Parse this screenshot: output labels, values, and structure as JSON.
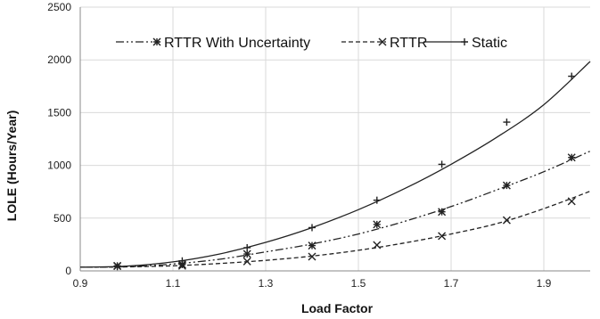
{
  "chart_data": {
    "type": "line",
    "title": "",
    "xlabel": "Load Factor",
    "ylabel": "LOLE (Hours/Year)",
    "xlim": [
      0.9,
      2.0
    ],
    "ylim": [
      0,
      2500
    ],
    "x_ticks": [
      "0.9",
      "1.1",
      "1.3",
      "1.5",
      "1.7",
      "1.9"
    ],
    "y_ticks": [
      "0",
      "500",
      "1000",
      "1500",
      "2000",
      "2500"
    ],
    "grid": true,
    "legend_position": "top",
    "series": [
      {
        "name": "RTTR With Uncertainty",
        "marker": "asterisk",
        "line_style": "dash-dot-dot",
        "color": "#222222",
        "points": [
          [
            0.98,
            48
          ],
          [
            1.12,
            60
          ],
          [
            1.26,
            160
          ],
          [
            1.4,
            240
          ],
          [
            1.54,
            440
          ],
          [
            1.68,
            560
          ],
          [
            1.82,
            810
          ],
          [
            1.96,
            1075
          ]
        ],
        "trend": [
          [
            0.9,
            35
          ],
          [
            1.0,
            40
          ],
          [
            1.1,
            65
          ],
          [
            1.2,
            110
          ],
          [
            1.3,
            180
          ],
          [
            1.4,
            255
          ],
          [
            1.5,
            350
          ],
          [
            1.6,
            470
          ],
          [
            1.7,
            610
          ],
          [
            1.8,
            770
          ],
          [
            1.9,
            940
          ],
          [
            2.0,
            1135
          ]
        ]
      },
      {
        "name": "RTTR",
        "marker": "x",
        "line_style": "dashed",
        "color": "#222222",
        "points": [
          [
            0.98,
            45
          ],
          [
            1.12,
            48
          ],
          [
            1.26,
            90
          ],
          [
            1.4,
            135
          ],
          [
            1.54,
            245
          ],
          [
            1.68,
            330
          ],
          [
            1.82,
            480
          ],
          [
            1.96,
            660
          ]
        ],
        "trend": [
          [
            0.9,
            35
          ],
          [
            1.0,
            38
          ],
          [
            1.1,
            48
          ],
          [
            1.2,
            70
          ],
          [
            1.3,
            100
          ],
          [
            1.4,
            140
          ],
          [
            1.5,
            195
          ],
          [
            1.6,
            265
          ],
          [
            1.7,
            350
          ],
          [
            1.8,
            450
          ],
          [
            1.9,
            590
          ],
          [
            2.0,
            755
          ]
        ]
      },
      {
        "name": "Static",
        "marker": "plus",
        "line_style": "solid",
        "color": "#222222",
        "points": [
          [
            0.98,
            40
          ],
          [
            1.12,
            95
          ],
          [
            1.26,
            220
          ],
          [
            1.4,
            410
          ],
          [
            1.54,
            670
          ],
          [
            1.68,
            1010
          ],
          [
            1.82,
            1410
          ],
          [
            1.96,
            1845
          ]
        ],
        "trend": [
          [
            0.9,
            35
          ],
          [
            1.0,
            45
          ],
          [
            1.1,
            85
          ],
          [
            1.2,
            160
          ],
          [
            1.3,
            270
          ],
          [
            1.4,
            410
          ],
          [
            1.5,
            580
          ],
          [
            1.6,
            780
          ],
          [
            1.7,
            1010
          ],
          [
            1.8,
            1270
          ],
          [
            1.9,
            1575
          ],
          [
            2.0,
            1985
          ]
        ]
      }
    ]
  }
}
